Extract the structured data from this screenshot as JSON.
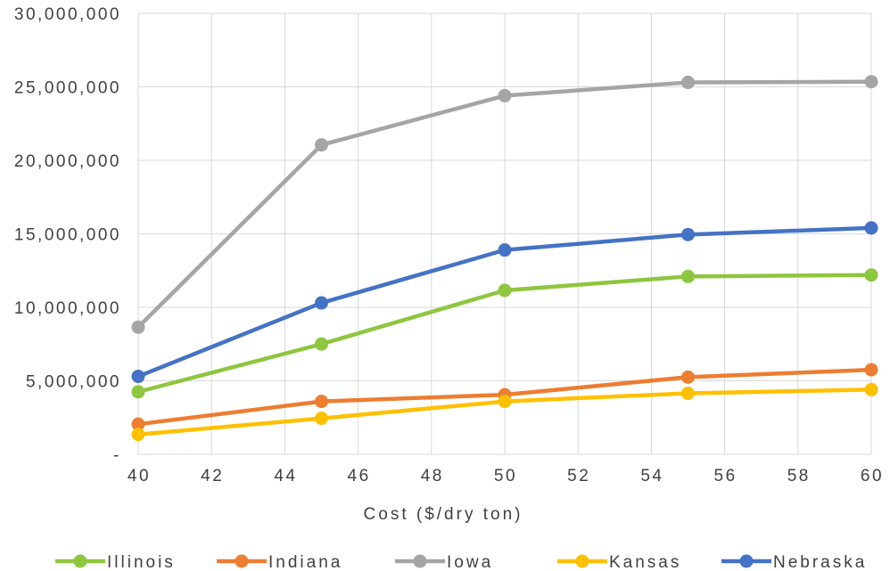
{
  "chart_data": {
    "type": "line",
    "title": "",
    "xlabel": "Cost ($/dry ton)",
    "ylabel": "",
    "x": [
      40,
      45,
      50,
      55,
      60
    ],
    "xlim": [
      40,
      60
    ],
    "xticks": [
      40,
      42,
      44,
      46,
      48,
      50,
      52,
      54,
      56,
      58,
      60
    ],
    "ylim": [
      0,
      30000000
    ],
    "yticks": [
      0,
      5000000,
      10000000,
      15000000,
      20000000,
      25000000,
      30000000
    ],
    "ytick_labels": [
      "-",
      "5,000,000",
      "10,000,000",
      "15,000,000",
      "20,000,000",
      "25,000,000",
      "30,000,000"
    ],
    "grid": true,
    "legend_position": "bottom",
    "series": [
      {
        "name": "Illinois",
        "color": "#8dc63f",
        "values": [
          4250000,
          7500000,
          11150000,
          12100000,
          12200000
        ]
      },
      {
        "name": "Indiana",
        "color": "#ed7d31",
        "values": [
          2050000,
          3600000,
          4050000,
          5250000,
          5750000
        ]
      },
      {
        "name": "Iowa",
        "color": "#a5a5a5",
        "values": [
          8650000,
          21050000,
          24400000,
          25300000,
          25350000
        ]
      },
      {
        "name": "Kansas",
        "color": "#ffc000",
        "values": [
          1350000,
          2450000,
          3600000,
          4150000,
          4400000
        ]
      },
      {
        "name": "Nebraska",
        "color": "#4472c4",
        "values": [
          5300000,
          10300000,
          13900000,
          14950000,
          15400000
        ]
      }
    ]
  }
}
